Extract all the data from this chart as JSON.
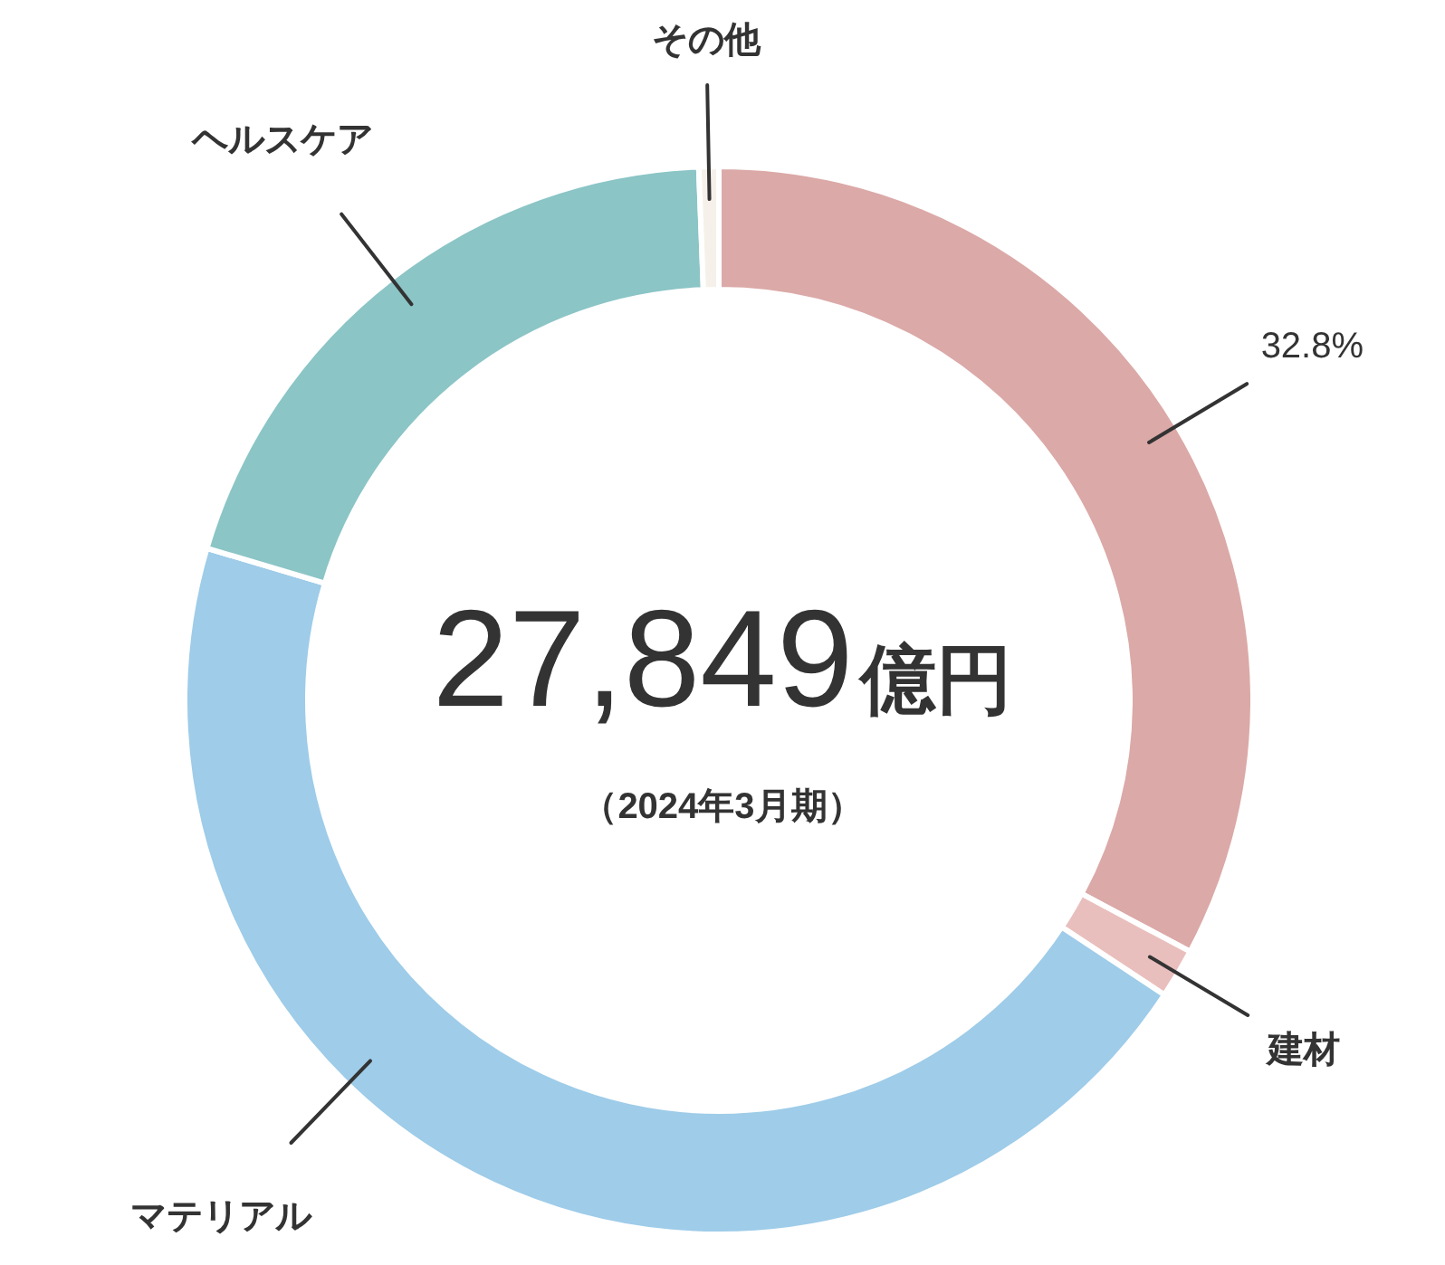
{
  "chart_data": {
    "type": "donut",
    "categories": [
      null,
      "建材",
      "マテリアル",
      "ヘルスケア",
      "その他"
    ],
    "values": [
      32.8,
      1.5,
      45.3,
      19.8,
      0.6
    ],
    "colors": [
      "#dba9a7",
      "#e9bfbd",
      "#9ecce9",
      "#8bc5c6",
      "#f5f0e9"
    ],
    "value_labels": [
      "32.8%",
      null,
      null,
      null,
      null
    ],
    "annotations": [
      "27,849億円",
      "（2024年3月期）"
    ]
  }
}
